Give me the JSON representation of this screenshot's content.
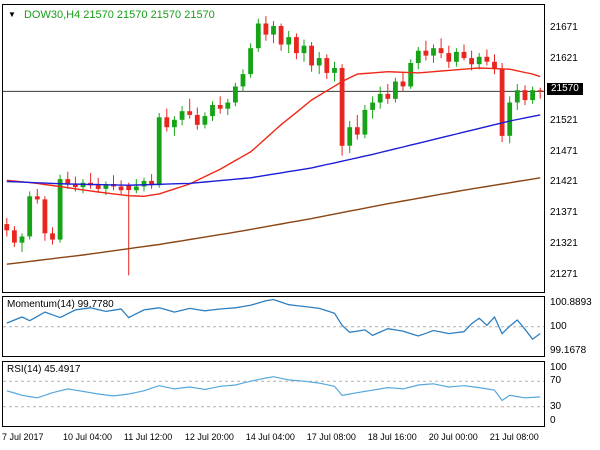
{
  "header": {
    "quote_line": "DOW30,H4 21570 21570 21570 21570",
    "dropdown_icon": "▼"
  },
  "colors": {
    "bull": "#17a317",
    "bear": "#e8251f",
    "ma_fast": "#f02818",
    "ma_mid": "#1c1cd8",
    "ma_slow": "#8b4513",
    "bid_line": "#3a3a3a",
    "level": "#b0b0b0",
    "tag_bg": "#000000",
    "tag_text": "#ffffff",
    "header_text": "#18a018"
  },
  "chart_data": [
    {
      "type": "candlestick",
      "title": "DOW30,H4",
      "bid": 21570,
      "bid_label": "21570",
      "ylim": [
        21245,
        21710
      ],
      "y_ticks": [
        21671,
        21621,
        21521,
        21471,
        21421,
        21371,
        21321,
        21271
      ],
      "x_labels": [
        {
          "bar": 0,
          "label": "7 Jul 2017"
        },
        {
          "bar": 8,
          "label": "10 Jul 04:00"
        },
        {
          "bar": 16,
          "label": "11 Jul 12:00"
        },
        {
          "bar": 24,
          "label": "12 Jul 20:00"
        },
        {
          "bar": 32,
          "label": "14 Jul 04:00"
        },
        {
          "bar": 40,
          "label": "17 Jul 08:00"
        },
        {
          "bar": 48,
          "label": "18 Jul 16:00"
        },
        {
          "bar": 56,
          "label": "20 Jul 00:00"
        },
        {
          "bar": 64,
          "label": "21 Jul 08:00"
        }
      ],
      "candles": [
        [
          21355,
          21365,
          21335,
          21345
        ],
        [
          21345,
          21352,
          21318,
          21325
        ],
        [
          21325,
          21340,
          21310,
          21335
        ],
        [
          21335,
          21408,
          21330,
          21400
        ],
        [
          21400,
          21412,
          21388,
          21395
        ],
        [
          21395,
          21400,
          21328,
          21340
        ],
        [
          21340,
          21350,
          21322,
          21330
        ],
        [
          21330,
          21435,
          21325,
          21428
        ],
        [
          21428,
          21440,
          21412,
          21420
        ],
        [
          21420,
          21432,
          21408,
          21415
        ],
        [
          21415,
          21428,
          21405,
          21422
        ],
        [
          21422,
          21438,
          21412,
          21418
        ],
        [
          21418,
          21430,
          21406,
          21412
        ],
        [
          21412,
          21424,
          21402,
          21420
        ],
        [
          21420,
          21434,
          21410,
          21416
        ],
        [
          21416,
          21426,
          21404,
          21410
        ],
        [
          21418,
          21422,
          21272,
          21410
        ],
        [
          21410,
          21428,
          21405,
          21416
        ],
        [
          21416,
          21430,
          21408,
          21425
        ],
        [
          21425,
          21436,
          21412,
          21418
        ],
        [
          21418,
          21535,
          21414,
          21528
        ],
        [
          21528,
          21542,
          21505,
          21512
        ],
        [
          21512,
          21530,
          21498,
          21524
        ],
        [
          21524,
          21546,
          21515,
          21538
        ],
        [
          21538,
          21558,
          21526,
          21532
        ],
        [
          21532,
          21544,
          21508,
          21516
        ],
        [
          21516,
          21536,
          21510,
          21530
        ],
        [
          21530,
          21554,
          21522,
          21548
        ],
        [
          21548,
          21562,
          21534,
          21542
        ],
        [
          21542,
          21558,
          21532,
          21552
        ],
        [
          21552,
          21584,
          21546,
          21578
        ],
        [
          21578,
          21606,
          21570,
          21598
        ],
        [
          21598,
          21648,
          21592,
          21640
        ],
        [
          21640,
          21688,
          21634,
          21680
        ],
        [
          21680,
          21692,
          21652,
          21662
        ],
        [
          21662,
          21684,
          21648,
          21676
        ],
        [
          21676,
          21680,
          21636,
          21646
        ],
        [
          21646,
          21668,
          21632,
          21658
        ],
        [
          21658,
          21664,
          21622,
          21632
        ],
        [
          21632,
          21654,
          21618,
          21644
        ],
        [
          21644,
          21650,
          21602,
          21612
        ],
        [
          21612,
          21634,
          21598,
          21624
        ],
        [
          21624,
          21630,
          21590,
          21600
        ],
        [
          21600,
          21618,
          21586,
          21608
        ],
        [
          21608,
          21614,
          21466,
          21482
        ],
        [
          21482,
          21522,
          21470,
          21512
        ],
        [
          21512,
          21532,
          21492,
          21500
        ],
        [
          21500,
          21548,
          21494,
          21540
        ],
        [
          21540,
          21562,
          21526,
          21552
        ],
        [
          21552,
          21578,
          21542,
          21566
        ],
        [
          21566,
          21582,
          21550,
          21558
        ],
        [
          21558,
          21592,
          21552,
          21586
        ],
        [
          21586,
          21602,
          21570,
          21578
        ],
        [
          21578,
          21622,
          21574,
          21616
        ],
        [
          21616,
          21642,
          21606,
          21636
        ],
        [
          21636,
          21652,
          21620,
          21628
        ],
        [
          21628,
          21646,
          21616,
          21640
        ],
        [
          21640,
          21656,
          21624,
          21632
        ],
        [
          21632,
          21644,
          21608,
          21618
        ],
        [
          21618,
          21640,
          21610,
          21634
        ],
        [
          21634,
          21646,
          21620,
          21624
        ],
        [
          21624,
          21636,
          21604,
          21614
        ],
        [
          21614,
          21632,
          21606,
          21626
        ],
        [
          21626,
          21638,
          21612,
          21618
        ],
        [
          21618,
          21630,
          21598,
          21606
        ],
        [
          21606,
          21616,
          21488,
          21498
        ],
        [
          21498,
          21562,
          21486,
          21552
        ],
        [
          21552,
          21582,
          21540,
          21572
        ],
        [
          21572,
          21580,
          21548,
          21556
        ],
        [
          21556,
          21578,
          21550,
          21572
        ],
        [
          21572,
          21576,
          21558,
          21570
        ]
      ],
      "overlays": [
        {
          "name": "ma-fast",
          "color": "#f02818",
          "points": [
            [
              0,
              21426
            ],
            [
              4,
              21421
            ],
            [
              8,
              21414
            ],
            [
              12,
              21407
            ],
            [
              16,
              21401
            ],
            [
              18,
              21400
            ],
            [
              20,
              21404
            ],
            [
              24,
              21420
            ],
            [
              28,
              21444
            ],
            [
              32,
              21472
            ],
            [
              36,
              21516
            ],
            [
              40,
              21556
            ],
            [
              44,
              21586
            ],
            [
              46,
              21598
            ],
            [
              50,
              21602
            ],
            [
              54,
              21600
            ],
            [
              58,
              21604
            ],
            [
              62,
              21608
            ],
            [
              66,
              21606
            ],
            [
              69,
              21598
            ],
            [
              70,
              21594
            ]
          ]
        },
        {
          "name": "ma-mid",
          "color": "#1c1cd8",
          "points": [
            [
              0,
              21424
            ],
            [
              8,
              21420
            ],
            [
              16,
              21418
            ],
            [
              24,
              21421
            ],
            [
              32,
              21430
            ],
            [
              40,
              21446
            ],
            [
              48,
              21468
            ],
            [
              56,
              21492
            ],
            [
              62,
              21510
            ],
            [
              66,
              21522
            ],
            [
              70,
              21532
            ]
          ]
        },
        {
          "name": "ma-slow",
          "color": "#8b4513",
          "points": [
            [
              0,
              21290
            ],
            [
              10,
              21305
            ],
            [
              20,
              21322
            ],
            [
              30,
              21342
            ],
            [
              40,
              21364
            ],
            [
              50,
              21388
            ],
            [
              60,
              21410
            ],
            [
              70,
              21430
            ]
          ]
        }
      ]
    },
    {
      "type": "line",
      "name": "Momentum",
      "label": "Momentum(14) 99.7780",
      "color": "#2d7fc0",
      "ylim": [
        99.05,
        100.97
      ],
      "levels": [
        100
      ],
      "y_ticks": [
        {
          "v": 100.8893,
          "t": "100.8893"
        },
        {
          "v": 100,
          "t": "100"
        },
        {
          "v": 99.1678,
          "t": "99.1678"
        }
      ],
      "points": [
        [
          0,
          100.12
        ],
        [
          2,
          100.32
        ],
        [
          3,
          100.2
        ],
        [
          5,
          100.48
        ],
        [
          7,
          100.3
        ],
        [
          9,
          100.55
        ],
        [
          11,
          100.62
        ],
        [
          13,
          100.5
        ],
        [
          15,
          100.58
        ],
        [
          16,
          100.3
        ],
        [
          18,
          100.55
        ],
        [
          20,
          100.62
        ],
        [
          22,
          100.48
        ],
        [
          24,
          100.6
        ],
        [
          26,
          100.52
        ],
        [
          28,
          100.58
        ],
        [
          30,
          100.62
        ],
        [
          32,
          100.7
        ],
        [
          34,
          100.85
        ],
        [
          35,
          100.89
        ],
        [
          37,
          100.72
        ],
        [
          39,
          100.66
        ],
        [
          41,
          100.6
        ],
        [
          43,
          100.44
        ],
        [
          44,
          100.05
        ],
        [
          45,
          99.82
        ],
        [
          47,
          99.9
        ],
        [
          48,
          99.72
        ],
        [
          50,
          99.94
        ],
        [
          52,
          99.86
        ],
        [
          54,
          99.7
        ],
        [
          56,
          99.88
        ],
        [
          58,
          99.78
        ],
        [
          60,
          99.84
        ],
        [
          61,
          100.1
        ],
        [
          62,
          100.28
        ],
        [
          63,
          100.05
        ],
        [
          64,
          100.32
        ],
        [
          65,
          99.78
        ],
        [
          66,
          100.02
        ],
        [
          67,
          100.22
        ],
        [
          68,
          99.92
        ],
        [
          69,
          99.6
        ],
        [
          70,
          99.78
        ]
      ]
    },
    {
      "type": "line",
      "name": "RSI",
      "label": "RSI(14) 45.4917",
      "color": "#56a8dc",
      "ylim": [
        0,
        100
      ],
      "levels": [
        70,
        30
      ],
      "y_ticks": [
        {
          "v": 100,
          "t": "100"
        },
        {
          "v": 70,
          "t": "70"
        },
        {
          "v": 30,
          "t": "30"
        },
        {
          "v": 0,
          "t": "0"
        }
      ],
      "points": [
        [
          0,
          55
        ],
        [
          2,
          48
        ],
        [
          4,
          44
        ],
        [
          6,
          52
        ],
        [
          8,
          58
        ],
        [
          10,
          54
        ],
        [
          12,
          50
        ],
        [
          14,
          47
        ],
        [
          16,
          50
        ],
        [
          18,
          55
        ],
        [
          20,
          63
        ],
        [
          22,
          58
        ],
        [
          24,
          61
        ],
        [
          26,
          57
        ],
        [
          28,
          62
        ],
        [
          30,
          64
        ],
        [
          32,
          70
        ],
        [
          34,
          75
        ],
        [
          35,
          77
        ],
        [
          37,
          72
        ],
        [
          39,
          70
        ],
        [
          41,
          67
        ],
        [
          43,
          62
        ],
        [
          44,
          48
        ],
        [
          46,
          52
        ],
        [
          48,
          56
        ],
        [
          50,
          60
        ],
        [
          52,
          58
        ],
        [
          54,
          64
        ],
        [
          56,
          66
        ],
        [
          58,
          61
        ],
        [
          60,
          63
        ],
        [
          62,
          60
        ],
        [
          64,
          56
        ],
        [
          65,
          40
        ],
        [
          66,
          48
        ],
        [
          68,
          44
        ],
        [
          70,
          45.49
        ]
      ]
    }
  ]
}
